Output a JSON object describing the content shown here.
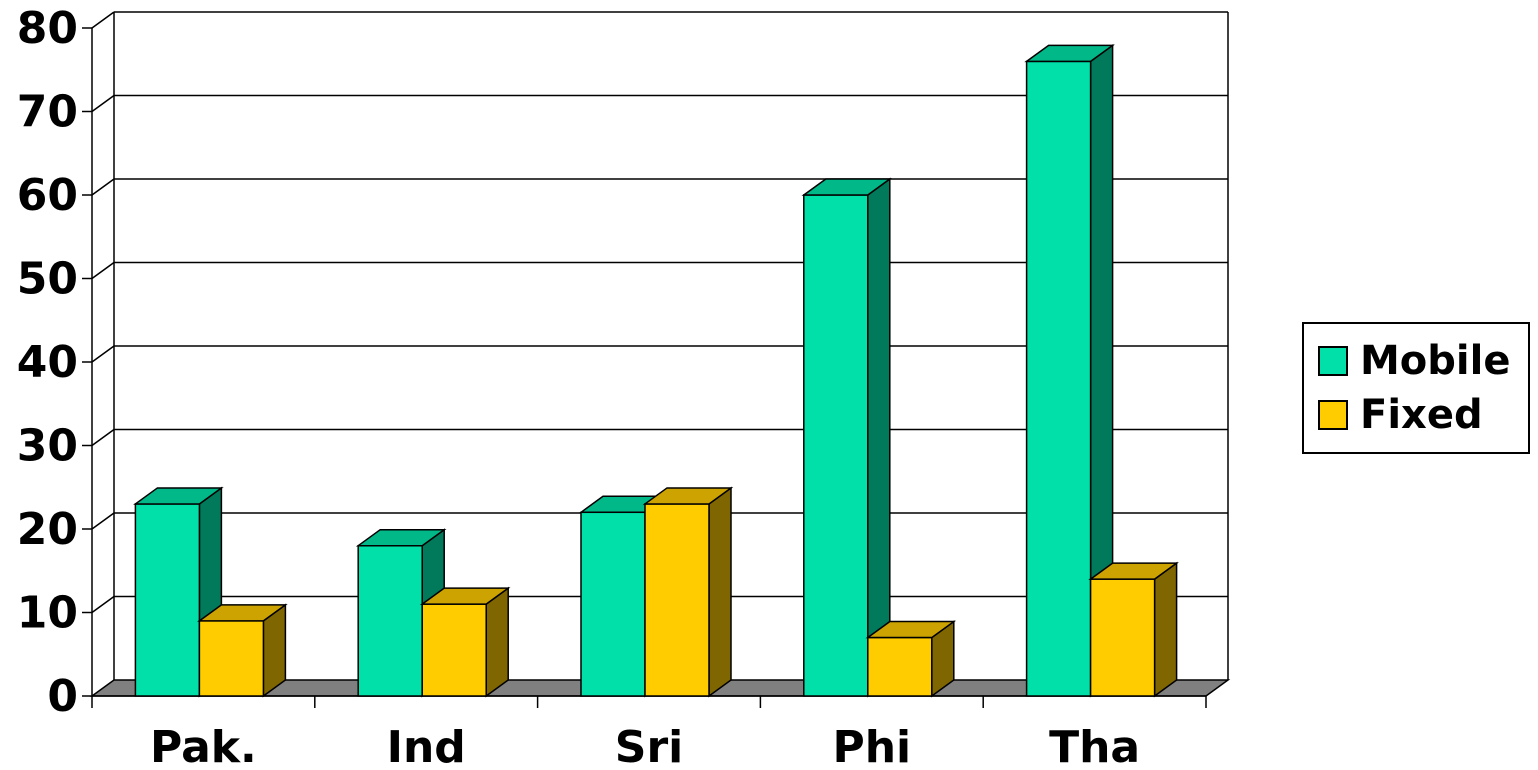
{
  "chart_data": {
    "type": "bar",
    "categories": [
      "Pak.",
      "Ind",
      "Sri",
      "Phi",
      "Tha"
    ],
    "series": [
      {
        "name": "Mobile",
        "values": [
          23,
          18,
          22,
          60,
          76
        ],
        "color": "#00E0A8",
        "side_color": "#007A5A",
        "top_color": "#00B888"
      },
      {
        "name": "Fixed",
        "values": [
          9,
          11,
          23,
          7,
          14
        ],
        "color": "#FFCC00",
        "side_color": "#806600",
        "top_color": "#CCA300"
      }
    ],
    "ylim": [
      0,
      80
    ],
    "y_ticks": [
      0,
      10,
      20,
      30,
      40,
      50,
      60,
      70,
      80
    ],
    "grid": true,
    "three_d": true,
    "legend": "right",
    "floor_color": "#808080"
  },
  "legend": {
    "items": [
      {
        "label": "Mobile",
        "color": "#00E0A8"
      },
      {
        "label": "Fixed",
        "color": "#FFCC00"
      }
    ]
  }
}
